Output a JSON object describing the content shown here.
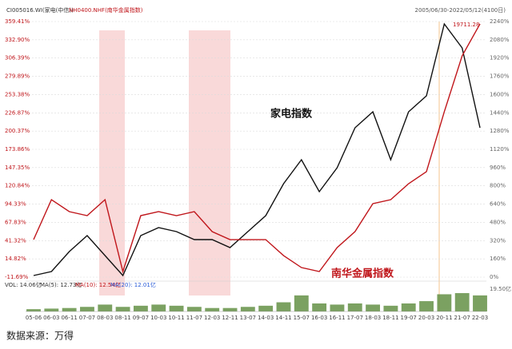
{
  "chart_data": {
    "type": "line",
    "legend": [
      "CI005016.WI(家电(中信))",
      "NH0400.NHF(南华金属指数)"
    ],
    "date_range": "2005/06/30-2022/05/12(4100日)",
    "categories": [
      "05-06",
      "06-03",
      "06-11",
      "07-07",
      "08-03",
      "08-11",
      "09-07",
      "10-03",
      "10-11",
      "11-07",
      "12-03",
      "12-11",
      "13-07",
      "14-03",
      "14-11",
      "15-07",
      "16-03",
      "16-11",
      "17-07",
      "18-03",
      "18-11",
      "19-07",
      "20-03",
      "20-11",
      "21-07",
      "22-03"
    ],
    "series": [
      {
        "name": "家电指数",
        "color": "#111111",
        "axis": "y2",
        "values": [
          14,
          49,
          224,
          364,
          189,
          14,
          364,
          434,
          399,
          329,
          329,
          259,
          399,
          539,
          819,
          1029,
          749,
          959,
          1309,
          1449,
          1029,
          1449,
          1589,
          2219,
          2009,
          1309
        ]
      },
      {
        "name": "南华金属指数",
        "color": "#c0161b",
        "values": [
          42.8,
          100.8,
          83.4,
          77.6,
          100.8,
          -3.6,
          77.6,
          83.4,
          77.6,
          83.4,
          54.4,
          42.8,
          42.8,
          42.8,
          19.6,
          2.2,
          -3.6,
          31.2,
          54.4,
          95,
          100.8,
          124,
          141.4,
          228.4,
          309.6,
          356
        ]
      }
    ],
    "peak_label": "19711.28",
    "ylim": [
      -11.69,
      359.41
    ],
    "yticks": [
      {
        "value": 359.41,
        "label": "359.41%"
      },
      {
        "value": 332.9,
        "label": "332.90%"
      },
      {
        "value": 306.39,
        "label": "306.39%"
      },
      {
        "value": 279.89,
        "label": "279.89%"
      },
      {
        "value": 253.38,
        "label": "253.38%"
      },
      {
        "value": 226.87,
        "label": "226.87%"
      },
      {
        "value": 200.37,
        "label": "200.37%"
      },
      {
        "value": 173.86,
        "label": "173.86%"
      },
      {
        "value": 147.35,
        "label": "147.35%"
      },
      {
        "value": 120.84,
        "label": "120.84%"
      },
      {
        "value": 94.33,
        "label": "94.33%"
      },
      {
        "value": 67.83,
        "label": "67.83%"
      },
      {
        "value": 41.32,
        "label": "41.32%"
      },
      {
        "value": 14.82,
        "label": "14.82%"
      },
      {
        "value": -11.69,
        "label": "-11.69%"
      }
    ],
    "y2lim": [
      0,
      2240
    ],
    "y2ticks": [
      {
        "value": 2240,
        "label": "2240%"
      },
      {
        "value": 2080,
        "label": "2080%"
      },
      {
        "value": 1920,
        "label": "1920%"
      },
      {
        "value": 1760,
        "label": "1760%"
      },
      {
        "value": 1600,
        "label": "1600%"
      },
      {
        "value": 1440,
        "label": "1440%"
      },
      {
        "value": 1280,
        "label": "1280%"
      },
      {
        "value": 1120,
        "label": "1120%"
      },
      {
        "value": 960,
        "label": "960%"
      },
      {
        "value": 800,
        "label": "800%"
      },
      {
        "value": 640,
        "label": "640%"
      },
      {
        "value": 480,
        "label": "480%"
      },
      {
        "value": 320,
        "label": "320%"
      },
      {
        "value": 160,
        "label": "160%"
      },
      {
        "value": 0,
        "label": "0%"
      }
    ],
    "grid": true,
    "volume": {
      "stats": [
        "VOL: 14.06亿",
        "MA(5): 12.73亿",
        "MA(10): 12.54亿",
        "MA(20): 12.01亿"
      ],
      "color": "#5a8a3a",
      "ylim": [
        0,
        19.5
      ],
      "yticks": [
        {
          "value": 19.5,
          "label": "19.50亿"
        }
      ],
      "values": [
        2,
        2.5,
        3,
        4,
        6,
        4,
        5,
        6,
        5,
        4,
        3,
        3,
        4,
        5,
        8,
        14,
        7,
        6,
        7,
        6,
        5,
        7,
        9,
        15,
        16,
        14
      ]
    },
    "source": "数据来源：万得"
  }
}
